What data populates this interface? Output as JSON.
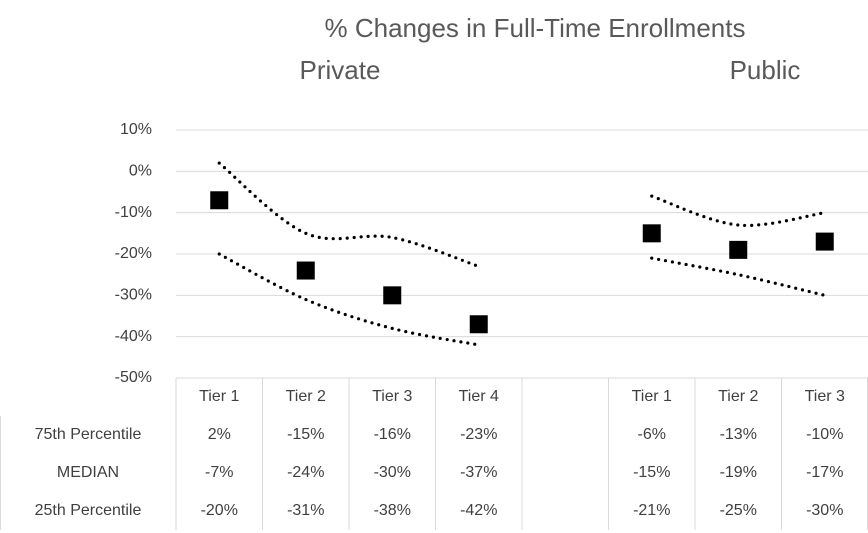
{
  "chart_data": {
    "type": "line",
    "title": "% Changes in Full-Time Enrollments",
    "subtitles": [
      "Private",
      "Public"
    ],
    "categories": [
      "Tier 1",
      "Tier 2",
      "Tier 3",
      "Tier 4",
      null,
      "Tier 1",
      "Tier 2",
      "Tier 3"
    ],
    "series": [
      {
        "name": "75th Percentile",
        "color": "#000000",
        "style": "dotted",
        "values": [
          2,
          -15,
          -16,
          -23,
          null,
          -6,
          -13,
          -10
        ],
        "value_labels": [
          "2%",
          "-15%",
          "-16%",
          "-23%",
          null,
          "-6%",
          "-13%",
          "-10%"
        ]
      },
      {
        "name": "MEDIAN",
        "color": "#000000",
        "style": "marker",
        "values": [
          -7,
          -24,
          -30,
          -37,
          null,
          -15,
          -19,
          -17
        ],
        "value_labels": [
          "-7%",
          "-24%",
          "-30%",
          "-37%",
          null,
          "-15%",
          "-19%",
          "-17%"
        ]
      },
      {
        "name": "25th Percentile",
        "color": "#000000",
        "style": "dotted",
        "values": [
          -20,
          -31,
          -38,
          -42,
          null,
          -21,
          -25,
          -30
        ],
        "value_labels": [
          "-20%",
          "-31%",
          "-38%",
          "-42%",
          null,
          "-21%",
          "-25%",
          "-30%"
        ]
      }
    ],
    "ylim": [
      -50,
      10
    ],
    "yticks": [
      {
        "value": -50,
        "label": "-50%"
      },
      {
        "value": -40,
        "label": "-40%"
      },
      {
        "value": -30,
        "label": "-30%"
      },
      {
        "value": -20,
        "label": "-20%"
      },
      {
        "value": -10,
        "label": "-10%"
      },
      {
        "value": 0,
        "label": "0%"
      },
      {
        "value": 10,
        "label": "10%"
      }
    ],
    "grid": true
  }
}
